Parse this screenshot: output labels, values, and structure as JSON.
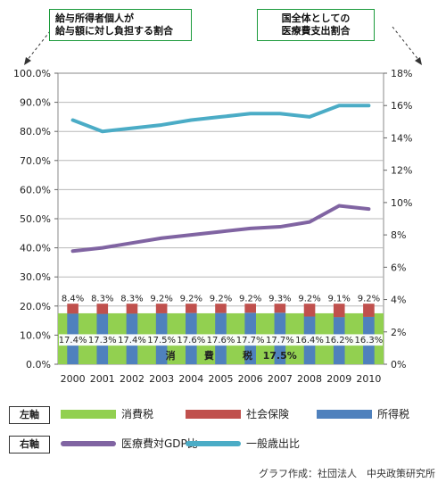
{
  "notes": {
    "left_axis_note": "給与所得者個人が\n給与額に対し負担する割合",
    "right_axis_note": "国全体としての\n医療費支出割合"
  },
  "legend": {
    "left_tag": "左軸",
    "right_tag": "右軸",
    "items_left": [
      {
        "label": "消費税",
        "color": "#92d050"
      },
      {
        "label": "社会保険",
        "color": "#c0504d"
      },
      {
        "label": "所得税",
        "color": "#4f81bd"
      }
    ],
    "items_right": [
      {
        "label": "医療費対GDP比",
        "color": "#8064a2"
      },
      {
        "label": "一般歳出比",
        "color": "#4bacc6"
      }
    ]
  },
  "credit": "グラフ作成：社団法人　中央政策研究所",
  "chart_data": {
    "type": "bar",
    "categories": [
      "2000",
      "2001",
      "2002",
      "2003",
      "2004",
      "2005",
      "2006",
      "2007",
      "2008",
      "2009",
      "2010"
    ],
    "left_axis": {
      "ylim": [
        0,
        100
      ],
      "ticks": [
        "0.0%",
        "10.0%",
        "20.0%",
        "30.0%",
        "40.0%",
        "50.0%",
        "60.0%",
        "70.0%",
        "80.0%",
        "90.0%",
        "100.0%"
      ]
    },
    "right_axis": {
      "ylim": [
        0,
        18
      ],
      "ticks": [
        "0%",
        "2%",
        "4%",
        "6%",
        "8%",
        "10%",
        "12%",
        "14%",
        "16%",
        "18%"
      ]
    },
    "series": [
      {
        "name": "所得税",
        "axis": "left",
        "kind": "bar",
        "color": "#4f81bd",
        "values": [
          17.4,
          17.3,
          17.4,
          17.5,
          17.6,
          17.6,
          17.7,
          17.7,
          16.4,
          16.2,
          16.3
        ],
        "labels": [
          "17.4%",
          "17.3%",
          "17.4%",
          "17.5%",
          "17.6%",
          "17.6%",
          "17.7%",
          "17.7%",
          "16.4%",
          "16.2%",
          "16.3%"
        ]
      },
      {
        "name": "社会保険",
        "axis": "left",
        "kind": "bar",
        "color": "#c0504d",
        "values": [
          8.4,
          8.3,
          8.3,
          9.2,
          9.2,
          9.2,
          9.2,
          9.3,
          9.2,
          9.1,
          9.2
        ],
        "labels": [
          "8.4%",
          "8.3%",
          "8.3%",
          "9.2%",
          "9.2%",
          "9.2%",
          "9.2%",
          "9.3%",
          "9.2%",
          "9.1%",
          "9.2%"
        ]
      },
      {
        "name": "消費税",
        "axis": "left",
        "kind": "band",
        "color": "#92d050",
        "values": [
          17.5,
          17.5,
          17.5,
          17.5,
          17.5,
          17.5,
          17.5,
          17.5,
          17.5,
          17.5,
          17.5
        ],
        "band_text": [
          "消",
          "費",
          "税",
          "17.5%"
        ]
      },
      {
        "name": "医療費対GDP比",
        "axis": "right",
        "kind": "line",
        "color": "#8064a2",
        "values": [
          7.0,
          7.2,
          7.5,
          7.8,
          8.0,
          8.2,
          8.4,
          8.5,
          8.8,
          9.8,
          9.6
        ]
      },
      {
        "name": "一般歳出比",
        "axis": "right",
        "kind": "line",
        "color": "#4bacc6",
        "values": [
          15.1,
          14.4,
          14.6,
          14.8,
          15.1,
          15.3,
          15.5,
          15.5,
          15.3,
          16.0,
          16.0
        ]
      }
    ]
  }
}
